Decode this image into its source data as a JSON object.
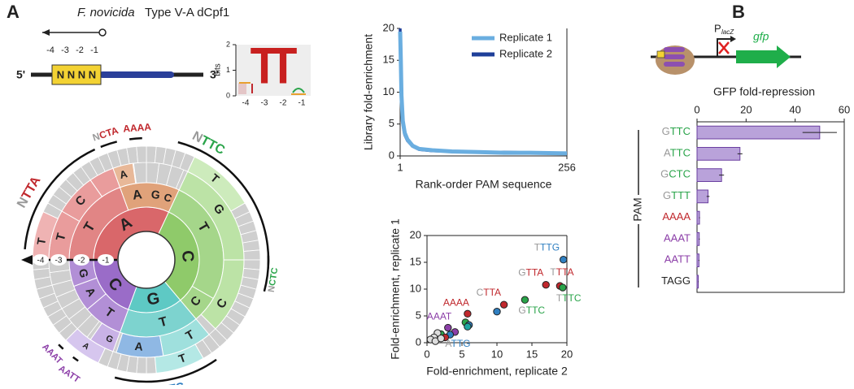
{
  "panel_a": {
    "label": "A",
    "title_italic": "F. novicida",
    "title": "Type V-A dCpf1",
    "schematic": {
      "positions": [
        "-4",
        "-3",
        "-2",
        "-1"
      ],
      "five_prime": "5'",
      "three_prime": "3'",
      "pam": "N N N N"
    },
    "logo": {
      "y_label": "bits",
      "ylim": [
        0,
        2
      ],
      "yticks": [
        0,
        1,
        2
      ],
      "x_labels": [
        "-4",
        "-3",
        "-2",
        "-1"
      ],
      "letters": [
        "T",
        "T"
      ]
    },
    "wheel": {
      "positions": [
        "-4",
        "-3",
        "-2",
        "-1"
      ],
      "letters": [
        "A",
        "C",
        "G",
        "C",
        "T",
        "A",
        "G",
        "C",
        "T",
        "C",
        "T",
        "T",
        "A",
        "G",
        "T",
        "C",
        "A",
        "G",
        "C",
        "T",
        "A",
        "G",
        "T",
        "T",
        "T",
        "A"
      ],
      "lead_color": "#999999",
      "pam_labels": [
        {
          "text": "NTTA",
          "color": "#c0282d"
        },
        {
          "text": "NCTA",
          "color": "#c0282d"
        },
        {
          "text": "AAAA",
          "color": "#c0282d"
        },
        {
          "text": "NTTC",
          "color": "#2aa44a"
        },
        {
          "text": "NCTC",
          "color": "#2aa44a"
        },
        {
          "text": "NTTG",
          "color": "#2f7fc1"
        },
        {
          "text": "AAAT",
          "color": "#8c3fa8"
        },
        {
          "text": "AATT",
          "color": "#8c3fa8"
        }
      ]
    }
  },
  "chart_data": [
    {
      "type": "line",
      "xlabel": "Rank-order PAM sequence",
      "ylabel": "Library fold-enrichment",
      "x": [
        1,
        2,
        3,
        5,
        8,
        12,
        20,
        30,
        50,
        80,
        120,
        160,
        200,
        256
      ],
      "xlim": [
        1,
        256
      ],
      "xticks": [
        1,
        256
      ],
      "ylim": [
        0,
        20
      ],
      "yticks": [
        0,
        5,
        10,
        15,
        20
      ],
      "legend": "upper right",
      "series": [
        {
          "name": "Replicate 1",
          "color": "#6aaee0",
          "values": [
            19.5,
            15,
            9.5,
            5.5,
            3.6,
            2.6,
            1.6,
            1.1,
            0.9,
            0.7,
            0.6,
            0.5,
            0.5,
            0.4
          ]
        },
        {
          "name": "Replicate 2",
          "color": "#1f3f99",
          "values": [
            20,
            14,
            8.5,
            5,
            3.3,
            2.4,
            1.5,
            1.0,
            0.8,
            0.7,
            0.6,
            0.6,
            0.5,
            0.4
          ]
        }
      ]
    },
    {
      "type": "scatter",
      "xlabel": "Fold-enrichment, replicate 2",
      "ylabel": "Fold-enrichment, replicate 1",
      "xlim": [
        0,
        20
      ],
      "xticks": [
        0,
        5,
        10,
        15,
        20
      ],
      "ylim": [
        0,
        20
      ],
      "yticks": [
        0,
        5,
        10,
        15,
        20
      ],
      "x": [
        19.5,
        19.0,
        19.4,
        17.0,
        14.0,
        11.0,
        10.0,
        5.8,
        5.5,
        6.0,
        5.8,
        3.0,
        4.0,
        3.3,
        2.0,
        2.6,
        1.5,
        1.0,
        0.5,
        1.2,
        2.0
      ],
      "values": [
        15.5,
        10.6,
        10.3,
        10.8,
        8.0,
        7.1,
        5.8,
        5.4,
        3.8,
        3.3,
        3.0,
        2.8,
        2.0,
        1.5,
        1.6,
        1.0,
        1.8,
        1.0,
        0.6,
        0.3,
        0.8
      ],
      "colors": [
        "#2f7fc1",
        "#c0282d",
        "#2aa44a",
        "#c0282d",
        "#2aa44a",
        "#c0282d",
        "#2f7fc1",
        "#c0282d",
        "#2aa44a",
        "#2f7fc1",
        "#1fa5a0",
        "#8c3fa8",
        "#8c3fa8",
        "#2f7fc1",
        "#2aa44a",
        "#c0282d",
        "#dddddd",
        "#dddddd",
        "#dddddd",
        "#dddddd",
        "#dddddd"
      ],
      "labels": [
        "TTTG",
        "TTTA",
        "TTTC",
        "GTTA",
        "GTTC",
        "CTTA",
        null,
        "AAAA",
        null,
        null,
        null,
        "AAAT",
        null,
        "ATTG",
        null,
        null,
        null,
        null,
        null,
        null,
        null
      ],
      "lead_color": "#999999"
    },
    {
      "type": "hbar",
      "title": "GFP fold-repression",
      "ylabel": "PAM",
      "categories": [
        "GTTC",
        "ATTC",
        "GCTC",
        "GTTT",
        "AAAA",
        "AAAT",
        "AATT",
        "TAGG"
      ],
      "values": [
        50,
        17.5,
        10,
        4.5,
        1,
        0.9,
        0.8,
        0.5
      ],
      "errors": [
        7,
        1,
        1,
        0.6,
        0.2,
        0.2,
        0.2,
        0.1
      ],
      "xlim": [
        0,
        60
      ],
      "xticks": [
        0,
        20,
        40,
        60
      ],
      "color": "#b9a2da",
      "edge_color": "#6a3fa0",
      "label_colors": [
        "#2aa44a",
        "#2aa44a",
        "#2aa44a",
        "#2aa44a",
        "#c0282d",
        "#8c3fa8",
        "#8c3fa8",
        "#222222"
      ],
      "lead_colors": [
        "#999999",
        "#999999",
        "#999999",
        "#999999",
        "#c0282d",
        "#8c3fa8",
        "#8c3fa8",
        "#222222"
      ]
    }
  ],
  "panel_b": {
    "label": "B",
    "promoter": "P",
    "promoter_sub": "lacZ",
    "gene": "gfp"
  }
}
